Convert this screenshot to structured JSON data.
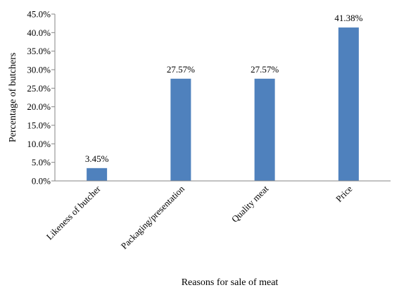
{
  "chart_data": {
    "type": "bar",
    "categories": [
      "Likeness of butcher",
      "Packaging/presentation",
      "Quality meat",
      "Price"
    ],
    "values": [
      3.45,
      27.57,
      27.57,
      41.38
    ],
    "data_labels": [
      "3.45%",
      "27.57%",
      "27.57%",
      "41.38%"
    ],
    "xlabel": "Reasons for sale of meat",
    "ylabel": "Percentage of butchers",
    "ylim": [
      0,
      45
    ],
    "yticks": [
      0,
      5,
      10,
      15,
      20,
      25,
      30,
      35,
      40,
      45
    ],
    "ytick_labels": [
      "0.0%",
      "5.0%",
      "10.0%",
      "15.0%",
      "20.0%",
      "25.0%",
      "30.0%",
      "35.0%",
      "40.0%",
      "45.0%"
    ],
    "grid": false,
    "legend": "none",
    "bar_color": "#4F81BD"
  }
}
